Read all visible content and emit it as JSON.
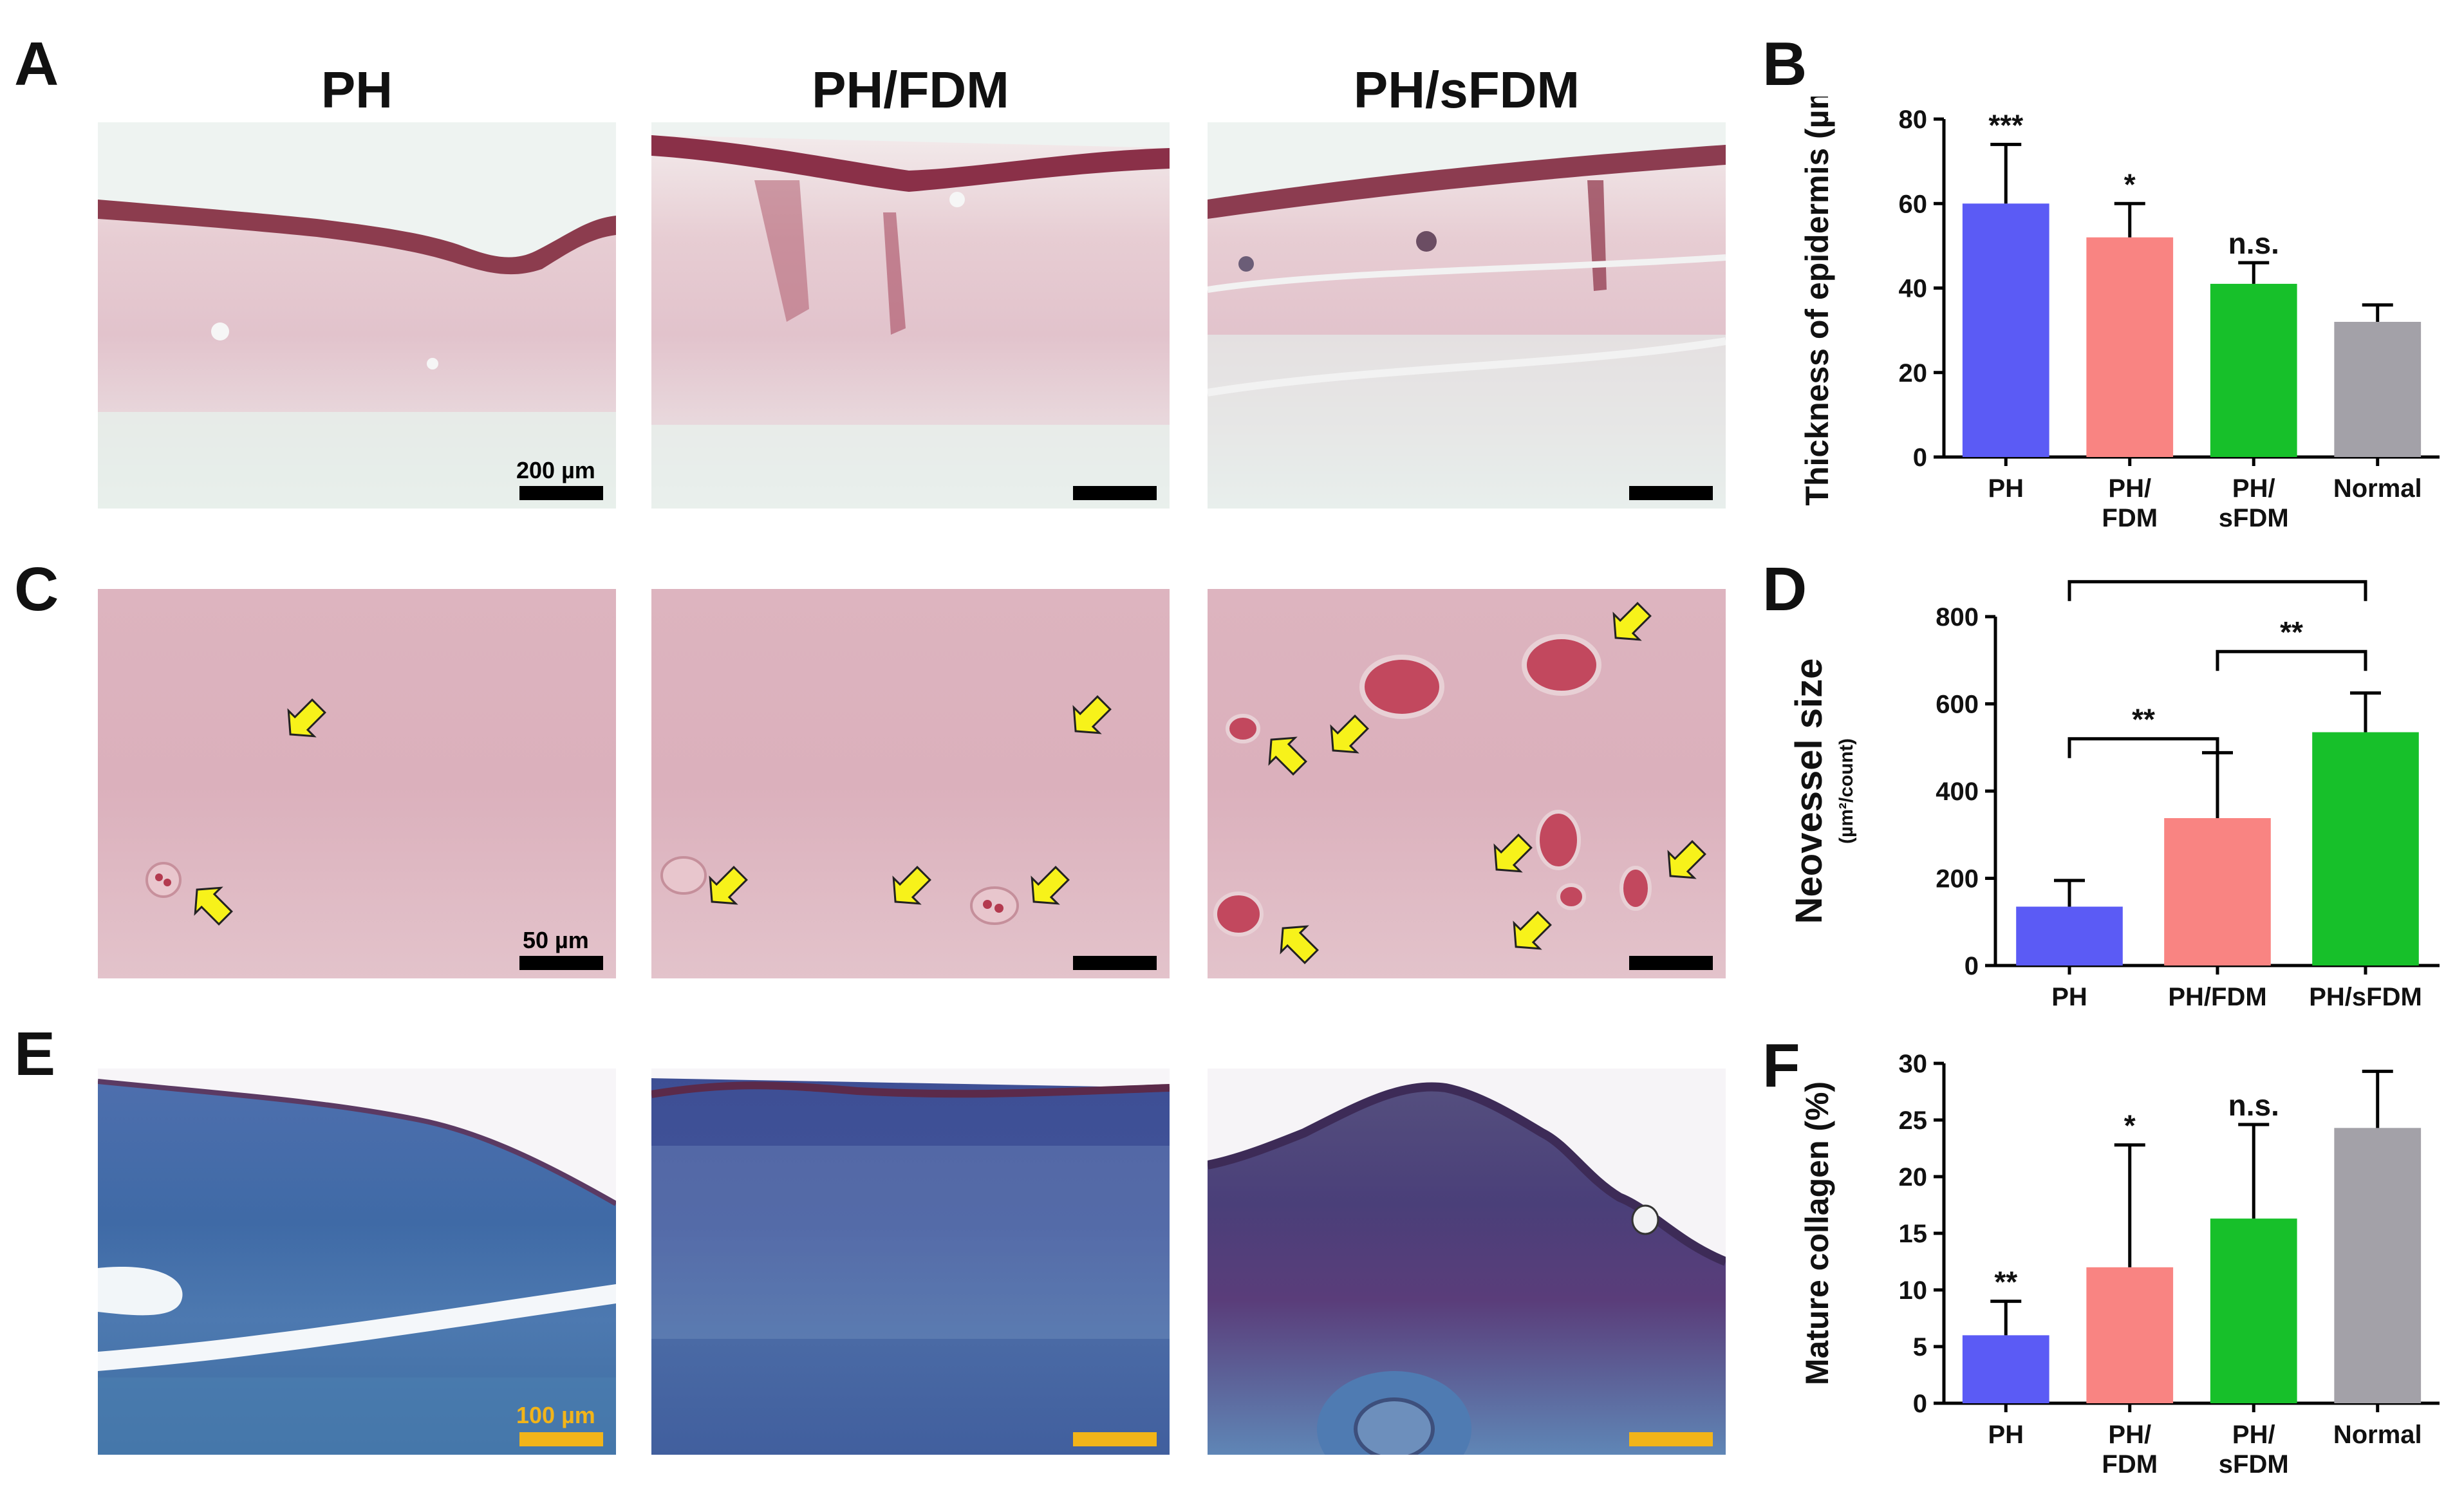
{
  "panel_labels": {
    "A": "A",
    "B": "B",
    "C": "C",
    "D": "D",
    "E": "E",
    "F": "F"
  },
  "column_titles": [
    "PH",
    "PH/FDM",
    "PH/sFDM"
  ],
  "scale_bars": {
    "A": "200 µm",
    "C": "50 µm",
    "E": "100 µm"
  },
  "colors": {
    "PH": "#5b5bf5",
    "PH_FDM": "#f98482",
    "PH_sFDM": "#17c02a",
    "Normal": "#a3a1a8",
    "arrow": "#f7f21a",
    "scale_gold": "#f2b419"
  },
  "chart_data": [
    {
      "id": "B",
      "type": "bar",
      "ylabel": "Thickness of epidermis (µm)",
      "categories": [
        [
          "PH"
        ],
        [
          "PH/",
          "FDM"
        ],
        [
          "PH/",
          "sFDM"
        ],
        [
          "Normal"
        ]
      ],
      "values": [
        60,
        52,
        41,
        32
      ],
      "errors": [
        14,
        8,
        5,
        4
      ],
      "significance": [
        "***",
        "*",
        "n.s.",
        ""
      ],
      "ylim": [
        0,
        80
      ],
      "yticks": [
        "0",
        "20",
        "40",
        "60",
        "80"
      ],
      "colors": [
        "#5b5bf5",
        "#f98482",
        "#17c02a",
        "#a3a1a8"
      ]
    },
    {
      "id": "D",
      "type": "bar",
      "ylabel": "Neovessel size",
      "ylabel_sub": "(µm²/count)",
      "categories": [
        [
          "PH"
        ],
        [
          "PH/FDM"
        ],
        [
          "PH/sFDM"
        ]
      ],
      "values": [
        135,
        338,
        535
      ],
      "errors": [
        60,
        150,
        90
      ],
      "ylim": [
        0,
        800
      ],
      "yticks": [
        "0",
        "200",
        "400",
        "600",
        "800"
      ],
      "colors": [
        "#5b5bf5",
        "#f98482",
        "#17c02a"
      ],
      "comparisons": [
        {
          "from": 0,
          "to": 1,
          "label": "**",
          "level": 1
        },
        {
          "from": 1,
          "to": 2,
          "label": "**",
          "level": 2
        },
        {
          "from": 0,
          "to": 2,
          "label": "****",
          "level": 3
        }
      ]
    },
    {
      "id": "F",
      "type": "bar",
      "ylabel": "Mature collagen (%)",
      "categories": [
        [
          "PH"
        ],
        [
          "PH/",
          "FDM"
        ],
        [
          "PH/",
          "sFDM"
        ],
        [
          "Normal"
        ]
      ],
      "values": [
        6,
        12,
        16.3,
        24.3
      ],
      "errors": [
        3,
        10.8,
        8.3,
        5
      ],
      "significance": [
        "**",
        "*",
        "n.s.",
        ""
      ],
      "ylim": [
        0,
        30
      ],
      "yticks": [
        "0",
        "5",
        "10",
        "15",
        "20",
        "25",
        "30"
      ],
      "colors": [
        "#5b5bf5",
        "#f98482",
        "#17c02a",
        "#a3a1a8"
      ]
    }
  ]
}
